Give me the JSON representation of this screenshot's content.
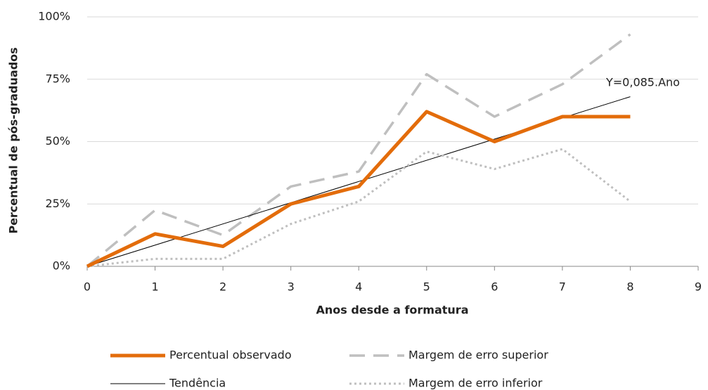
{
  "chart_data": {
    "type": "line",
    "x_label": "Anos desde a formatura",
    "y_label": "Percentual de pós-graduados",
    "annotation": "Y=0,085.Ano",
    "xlim": [
      0,
      9
    ],
    "xticks": [
      0,
      1,
      2,
      3,
      4,
      5,
      6,
      7,
      8,
      9
    ],
    "ylim": [
      0,
      100
    ],
    "yticks": [
      {
        "value": 0,
        "label": "0%"
      },
      {
        "value": 25,
        "label": "25%"
      },
      {
        "value": 50,
        "label": "50%"
      },
      {
        "value": 75,
        "label": "75%"
      },
      {
        "value": 100,
        "label": "100%"
      }
    ],
    "grid": true,
    "legend": "bottom",
    "x": [
      0,
      1,
      2,
      3,
      4,
      5,
      6,
      7,
      8
    ],
    "series": [
      {
        "name": "Percentual observado",
        "color": "#e36c0a",
        "line_style": "thick",
        "values": [
          0,
          13,
          8,
          25,
          32,
          62,
          50,
          60,
          60
        ]
      },
      {
        "name": "Margem de erro superior",
        "color": "#bfbfbf",
        "line_style": "dashed",
        "values": [
          0,
          22.5,
          12.5,
          32,
          38,
          77,
          60,
          73,
          93
        ]
      },
      {
        "name": "Tendência",
        "color": "#000000",
        "line_style": "thin",
        "x": [
          0,
          8
        ],
        "values": [
          0,
          68
        ]
      },
      {
        "name": "Margem de erro inferior",
        "color": "#bfbfbf",
        "line_style": "dotted",
        "values": [
          0,
          3,
          3,
          17,
          26,
          46,
          39,
          47,
          26
        ]
      }
    ]
  }
}
